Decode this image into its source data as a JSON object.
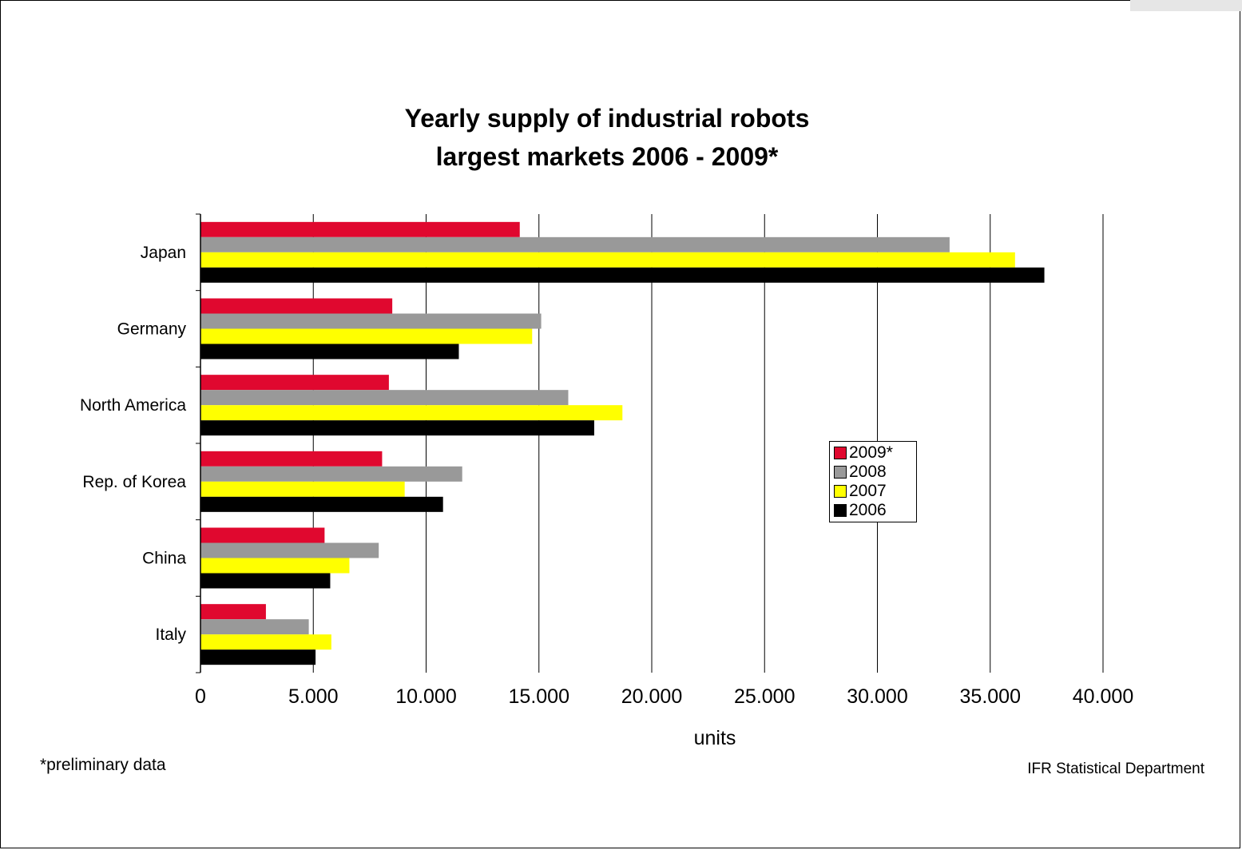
{
  "chart_data": {
    "type": "bar",
    "orientation": "horizontal",
    "title_line1": "Yearly supply of industrial robots",
    "title_line2": "largest markets 2006 - 2009*",
    "xlabel": "units",
    "ylabel": "",
    "categories": [
      "Japan",
      "Germany",
      "North America",
      "Rep. of Korea",
      "China",
      "Italy"
    ],
    "series": [
      {
        "name": "2009*",
        "color": "#e0082f",
        "values": [
          14150,
          8500,
          8350,
          8050,
          5500,
          2900
        ]
      },
      {
        "name": "2008",
        "color": "#999999",
        "values": [
          33200,
          15100,
          16300,
          11600,
          7900,
          4800
        ]
      },
      {
        "name": "2007",
        "color": "#ffff00",
        "values": [
          36100,
          14700,
          18700,
          9050,
          6600,
          5800
        ]
      },
      {
        "name": "2006",
        "color": "#000000",
        "values": [
          37400,
          11450,
          17450,
          10750,
          5750,
          5100
        ]
      }
    ],
    "xlim": [
      0,
      40000
    ],
    "xticks": [
      0,
      5000,
      10000,
      15000,
      20000,
      25000,
      30000,
      35000,
      40000
    ],
    "xtick_labels": [
      "0",
      "5.000",
      "10.000",
      "15.000",
      "20.000",
      "25.000",
      "30.000",
      "35.000",
      "40.000"
    ],
    "grid": "vertical",
    "legend_placement": "right-center"
  },
  "footnote": "*preliminary data",
  "source": "IFR Statistical Department"
}
